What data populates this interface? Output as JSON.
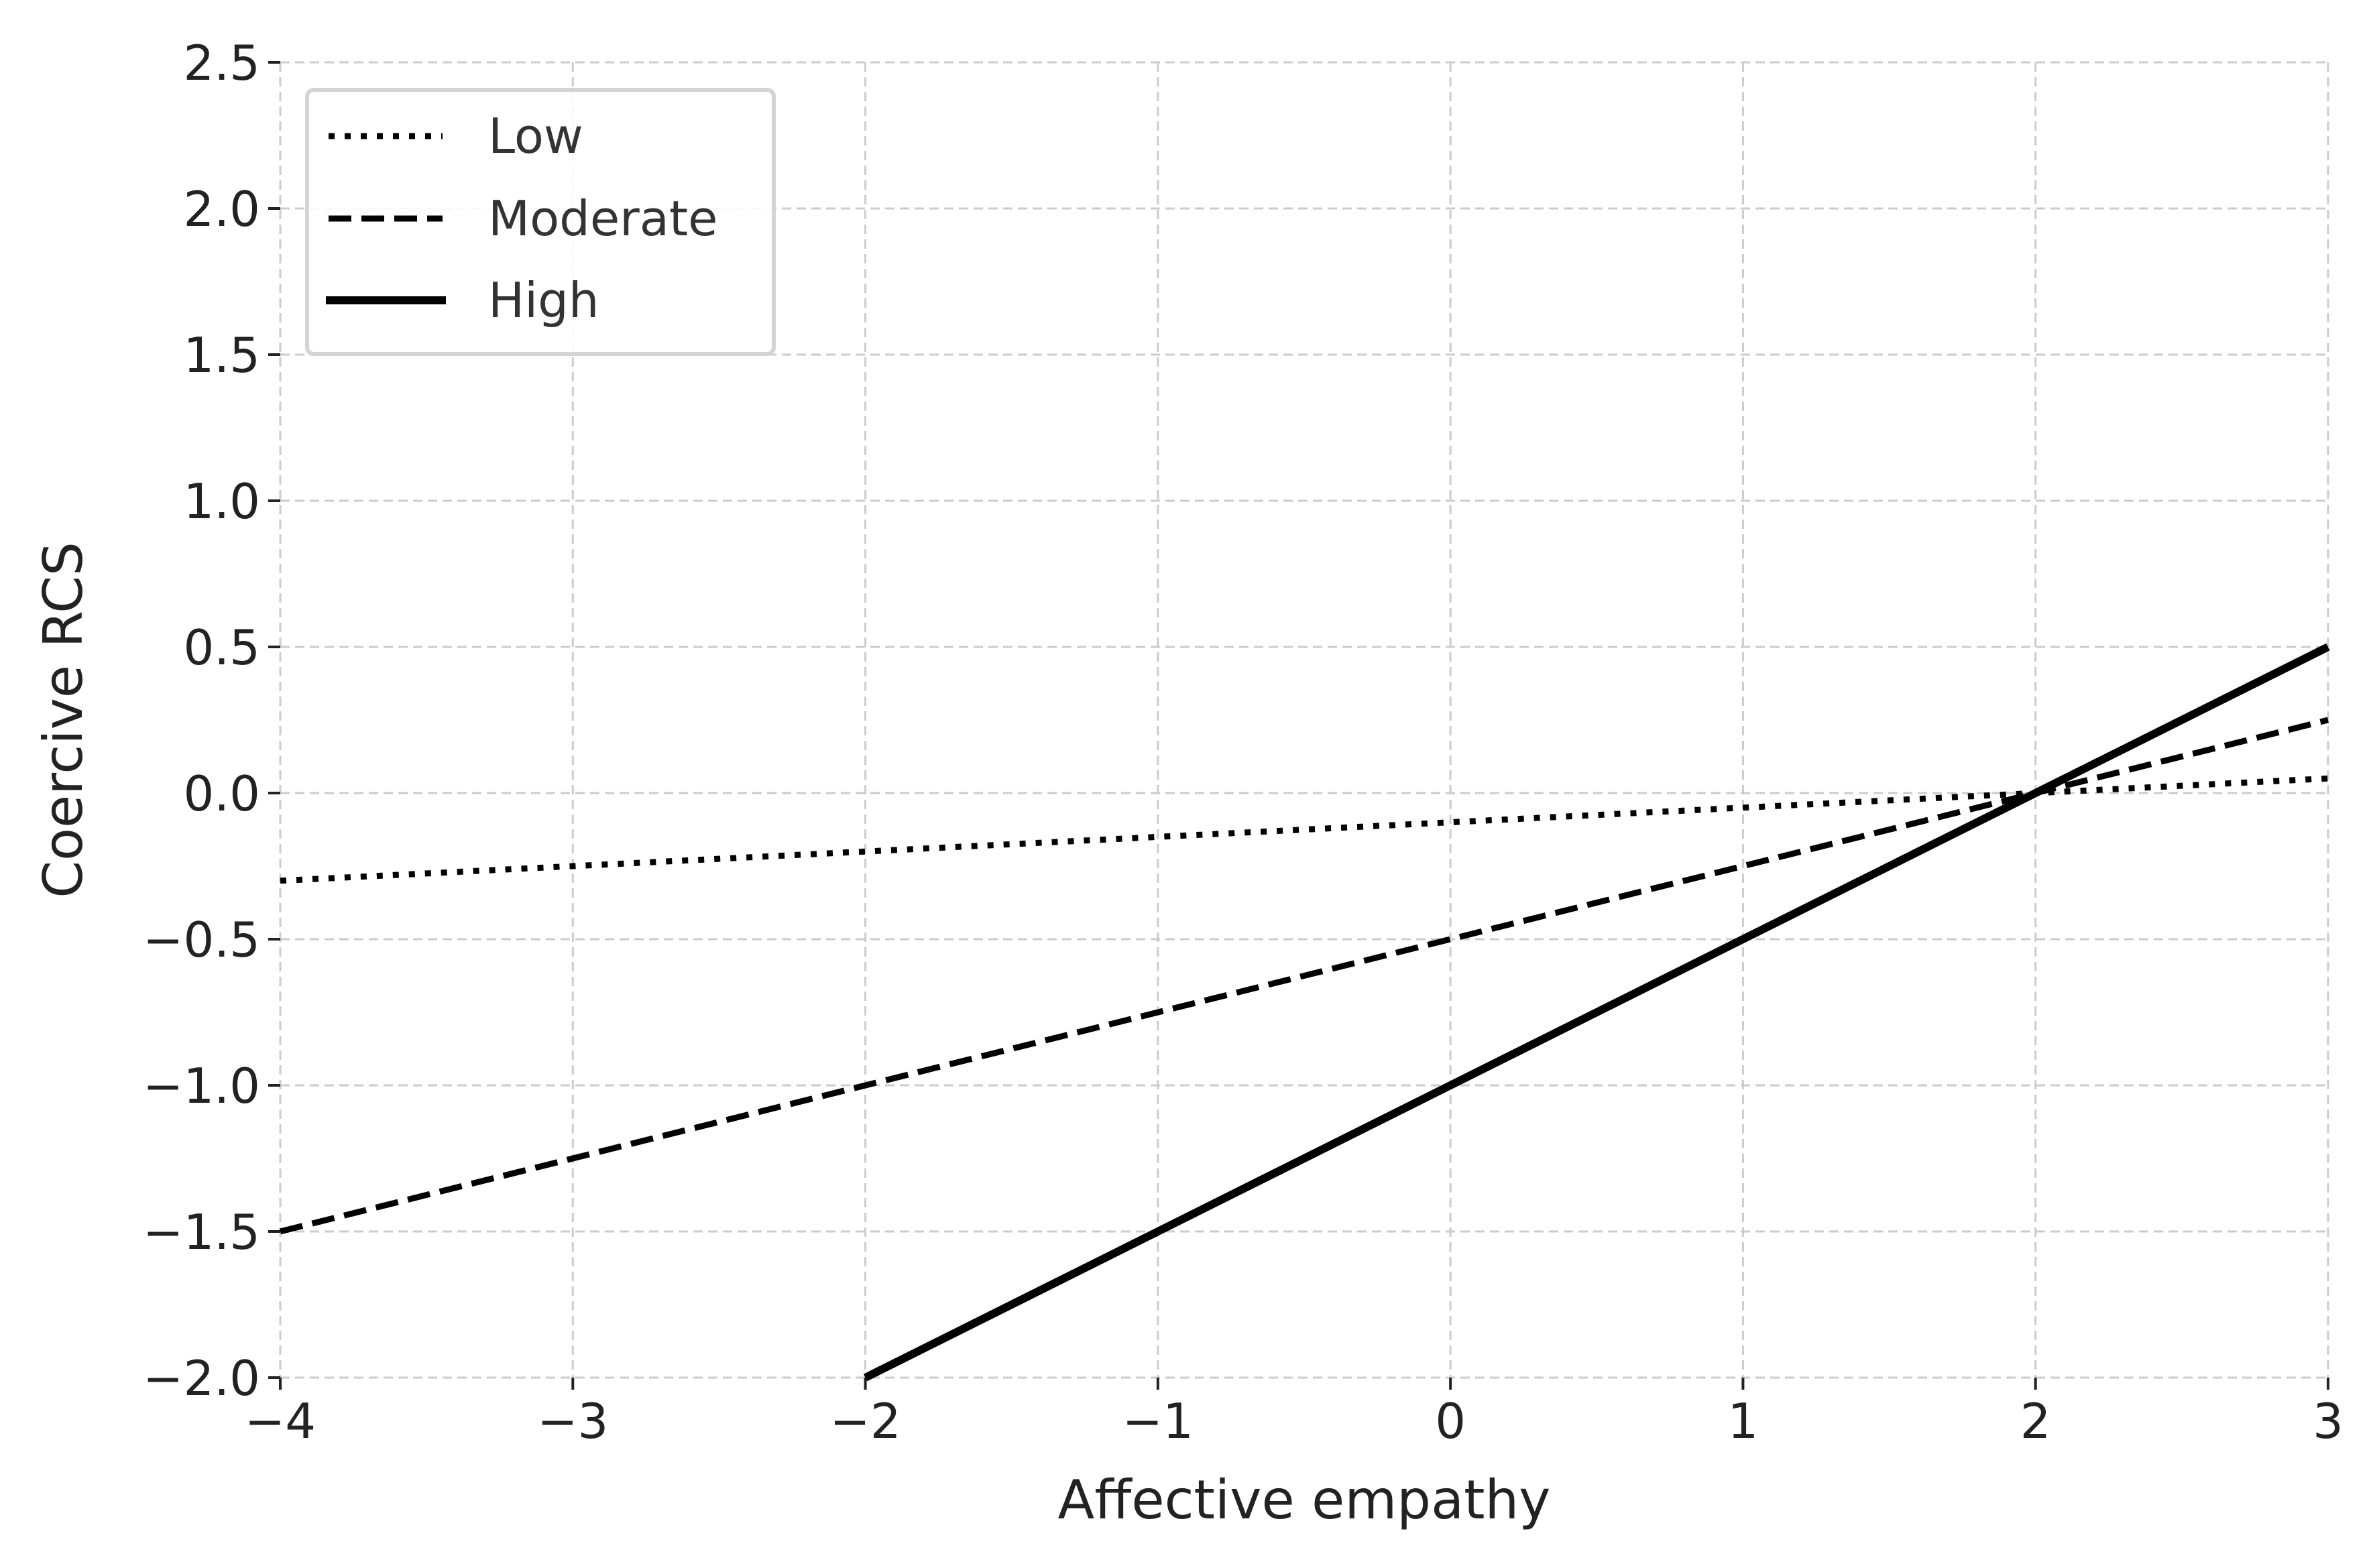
{
  "chart_data": {
    "type": "line",
    "xlabel": "Affective empathy",
    "ylabel": "Coercive RCS",
    "xlim": [
      -4,
      3
    ],
    "ylim": [
      -2.0,
      2.5
    ],
    "xticks": [
      "−4",
      "−3",
      "−2",
      "−1",
      "0",
      "1",
      "2",
      "3"
    ],
    "xtick_values": [
      -4,
      -3,
      -2,
      -1,
      0,
      1,
      2,
      3
    ],
    "yticks": [
      "−2.0",
      "−1.5",
      "−1.0",
      "−0.5",
      "0.0",
      "0.5",
      "1.0",
      "1.5",
      "2.0",
      "2.5"
    ],
    "ytick_values": [
      -2.0,
      -1.5,
      -1.0,
      -0.5,
      0.0,
      0.5,
      1.0,
      1.5,
      2.0,
      2.5
    ],
    "grid": true,
    "legend_position": "top-left",
    "series": [
      {
        "name": "Low",
        "style": "dotted",
        "color": "#000000",
        "x": [
          -4,
          3
        ],
        "y": [
          -0.3,
          0.05
        ]
      },
      {
        "name": "Moderate",
        "style": "dashed",
        "color": "#000000",
        "x": [
          -4,
          3
        ],
        "y": [
          -1.5,
          0.25
        ]
      },
      {
        "name": "High",
        "style": "solid",
        "color": "#000000",
        "x": [
          -2,
          3
        ],
        "y": [
          -2.0,
          0.5
        ]
      }
    ]
  }
}
